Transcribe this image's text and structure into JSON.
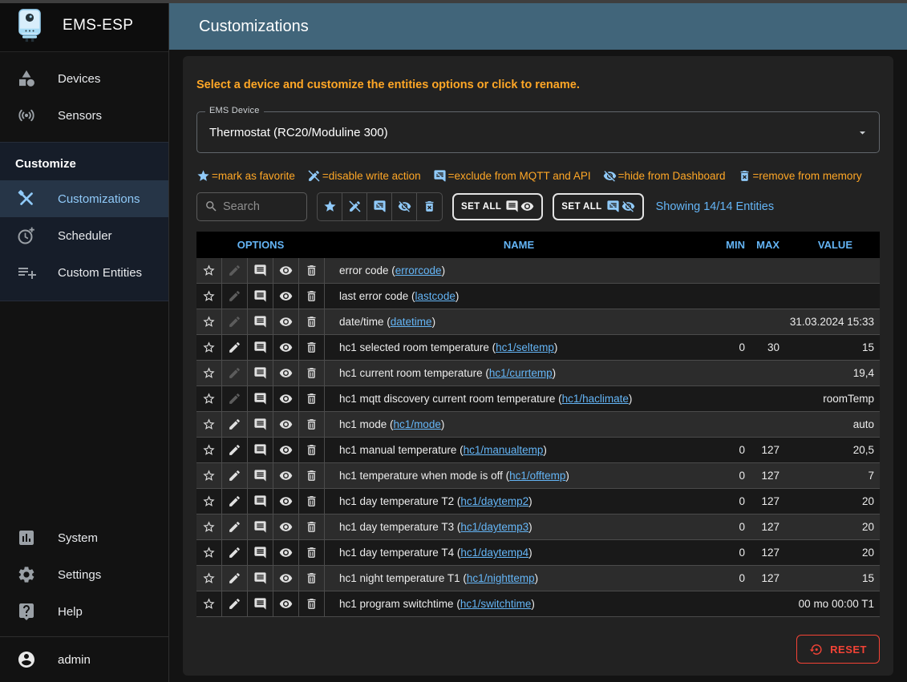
{
  "sidebar": {
    "title": "EMS-ESP",
    "items_top": [
      {
        "label": "Devices",
        "icon": "devices-icon"
      },
      {
        "label": "Sensors",
        "icon": "sensors-icon"
      }
    ],
    "section_label": "Customize",
    "items_customize": [
      {
        "label": "Customizations",
        "icon": "tools-icon",
        "active": true
      },
      {
        "label": "Scheduler",
        "icon": "clock-plus-icon",
        "active": false
      },
      {
        "label": "Custom Entities",
        "icon": "playlist-add-icon",
        "active": false
      }
    ],
    "items_bottom": [
      {
        "label": "System",
        "icon": "bar-chart-icon"
      },
      {
        "label": "Settings",
        "icon": "gear-icon"
      },
      {
        "label": "Help",
        "icon": "help-bubble-icon"
      }
    ],
    "user": "admin"
  },
  "header": {
    "title": "Customizations"
  },
  "main": {
    "hint": "Select a device and customize the entities options or click to rename.",
    "device_select": {
      "label": "EMS Device",
      "value": "Thermostat (RC20/Moduline 300)"
    },
    "legend": [
      {
        "icon": "star-icon",
        "text": "=mark as favorite"
      },
      {
        "icon": "edit-off-icon",
        "text": "=disable write action"
      },
      {
        "icon": "mqtt-off-icon",
        "text": "=exclude from MQTT and API"
      },
      {
        "icon": "eye-off-icon",
        "text": "=hide from Dashboard"
      },
      {
        "icon": "delete-forever-icon",
        "text": "=remove from memory"
      }
    ],
    "search_placeholder": "Search",
    "set_all_1": "SET ALL",
    "set_all_2": "SET ALL",
    "showing": "Showing 14/14 Entities",
    "reset_label": "RESET",
    "accent_blue": "#64b5f6",
    "icon_blue": "#90caf9",
    "accent_orange": "#ffa726",
    "reset_red": "#f44336"
  },
  "table": {
    "headers": [
      "OPTIONS",
      "NAME",
      "MIN",
      "MAX",
      "VALUE"
    ],
    "rows": [
      {
        "label": "error code",
        "tag": "errorcode",
        "min": "",
        "max": "",
        "value": "",
        "writable": false
      },
      {
        "label": "last error code",
        "tag": "lastcode",
        "min": "",
        "max": "",
        "value": "",
        "writable": false
      },
      {
        "label": "date/time",
        "tag": "datetime",
        "min": "",
        "max": "",
        "value": "31.03.2024 15:33",
        "writable": false
      },
      {
        "label": "hc1 selected room temperature",
        "tag": "hc1/seltemp",
        "min": "0",
        "max": "30",
        "value": "15",
        "writable": true
      },
      {
        "label": "hc1 current room temperature",
        "tag": "hc1/currtemp",
        "min": "",
        "max": "",
        "value": "19,4",
        "writable": false
      },
      {
        "label": "hc1 mqtt discovery current room temperature",
        "tag": "hc1/haclimate",
        "min": "",
        "max": "",
        "value": "roomTemp",
        "writable": false
      },
      {
        "label": "hc1 mode",
        "tag": "hc1/mode",
        "min": "",
        "max": "",
        "value": "auto",
        "writable": true
      },
      {
        "label": "hc1 manual temperature",
        "tag": "hc1/manualtemp",
        "min": "0",
        "max": "127",
        "value": "20,5",
        "writable": true
      },
      {
        "label": "hc1 temperature when mode is off",
        "tag": "hc1/offtemp",
        "min": "0",
        "max": "127",
        "value": "7",
        "writable": true
      },
      {
        "label": "hc1 day temperature T2",
        "tag": "hc1/daytemp2",
        "min": "0",
        "max": "127",
        "value": "20",
        "writable": true
      },
      {
        "label": "hc1 day temperature T3",
        "tag": "hc1/daytemp3",
        "min": "0",
        "max": "127",
        "value": "20",
        "writable": true
      },
      {
        "label": "hc1 day temperature T4",
        "tag": "hc1/daytemp4",
        "min": "0",
        "max": "127",
        "value": "20",
        "writable": true
      },
      {
        "label": "hc1 night temperature T1",
        "tag": "hc1/nighttemp",
        "min": "0",
        "max": "127",
        "value": "15",
        "writable": true
      },
      {
        "label": "hc1 program switchtime",
        "tag": "hc1/switchtime",
        "min": "",
        "max": "",
        "value": "00 mo 00:00 T1",
        "writable": true
      }
    ]
  }
}
